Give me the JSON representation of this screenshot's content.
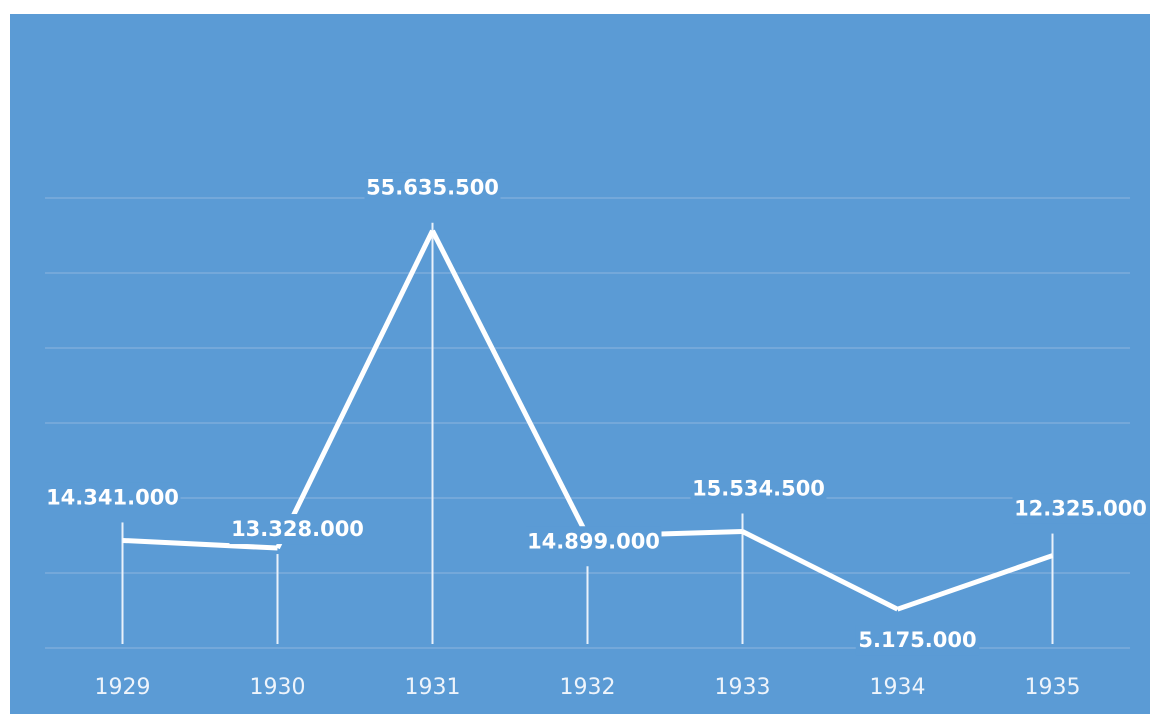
{
  "colors": {
    "background": "#5b9bd5",
    "line": "#ffffff",
    "gridline": "#8db4e0",
    "text": "#ffffff"
  },
  "chart_data": {
    "type": "line",
    "title": "",
    "xlabel": "",
    "ylabel": "",
    "categories": [
      "1929",
      "1930",
      "1931",
      "1932",
      "1933",
      "1934",
      "1935"
    ],
    "series": [
      {
        "values": [
          14341000,
          13328000,
          55635500,
          14899000,
          15534500,
          5175000,
          12325000
        ],
        "labels": [
          "14.341.000",
          "13.328.000",
          "55.635.500",
          "14.899.000",
          "15.534.500",
          "5.175.000",
          "12.325.000"
        ]
      }
    ],
    "ylim": [
      0,
      60000000
    ],
    "grid": true,
    "legend": "none",
    "data_labels": true,
    "drop_lines": true
  }
}
